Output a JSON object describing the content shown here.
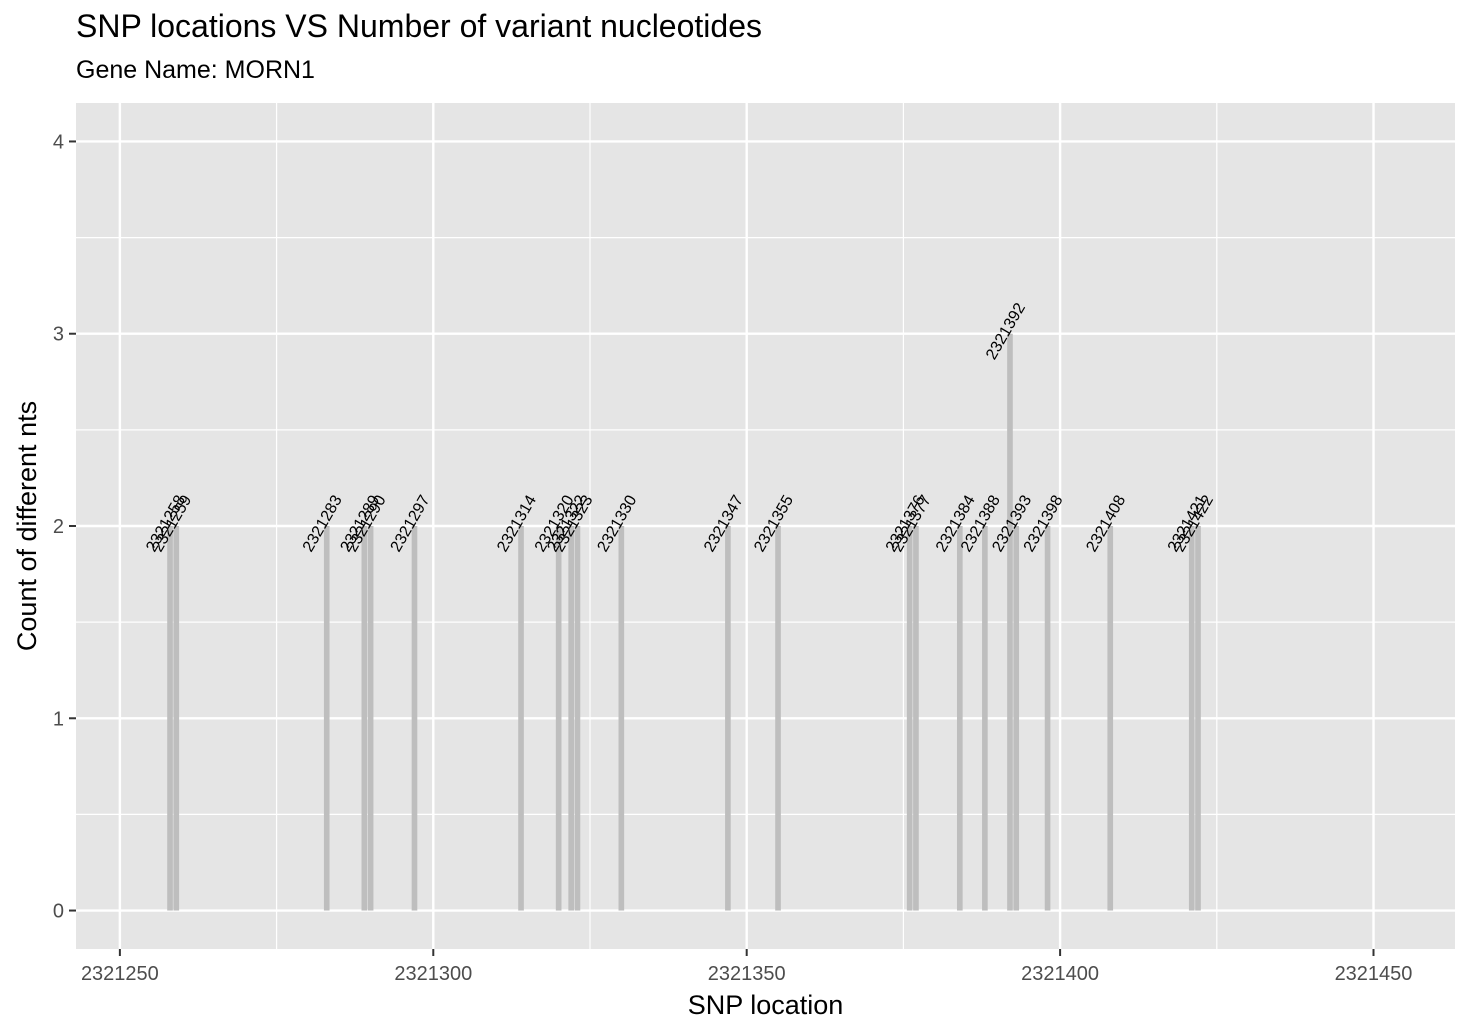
{
  "chart_data": {
    "type": "bar",
    "title": "SNP locations VS Number of variant nucleotides",
    "subtitle": "Gene Name: MORN1",
    "xlabel": "SNP location",
    "ylabel": "Count of different nts",
    "xlim": [
      2321243,
      2321463
    ],
    "ylim": [
      -0.2,
      4.2
    ],
    "x_ticks": [
      2321250,
      2321300,
      2321350,
      2321400,
      2321450
    ],
    "x_tick_labels": [
      "2321250",
      "2321300",
      "2321350",
      "2321400",
      "2321450"
    ],
    "y_ticks": [
      0,
      1,
      2,
      3,
      4
    ],
    "y_tick_labels": [
      "0",
      "1",
      "2",
      "3",
      "4"
    ],
    "grid": true,
    "bar_color": "#bebebe",
    "panel_background": "#e5e5e5",
    "grid_color": "#ffffff",
    "x": [
      2321258,
      2321259,
      2321283,
      2321289,
      2321290,
      2321297,
      2321314,
      2321320,
      2321322,
      2321323,
      2321330,
      2321347,
      2321355,
      2321376,
      2321377,
      2321384,
      2321388,
      2321392,
      2321393,
      2321398,
      2321408,
      2321421,
      2321422
    ],
    "values": [
      2,
      2,
      2,
      2,
      2,
      2,
      2,
      2,
      2,
      2,
      2,
      2,
      2,
      2,
      2,
      2,
      2,
      3,
      2,
      2,
      2,
      2,
      2
    ],
    "labels": [
      "2321258",
      "2321259",
      "2321283",
      "2321289",
      "2321290",
      "2321297",
      "2321314",
      "2321320",
      "2321322",
      "2321323",
      "2321330",
      "2321347",
      "2321355",
      "2321376",
      "2321377",
      "2321384",
      "2321388",
      "2321392",
      "2321393",
      "2321398",
      "2321408",
      "2321421",
      "2321422"
    ]
  }
}
